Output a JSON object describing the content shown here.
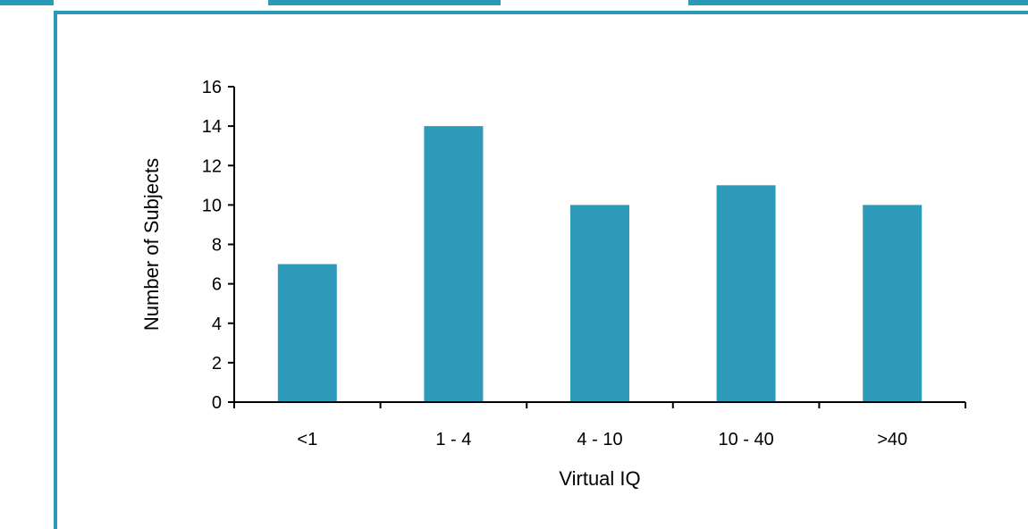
{
  "chart_data": {
    "type": "bar",
    "categories": [
      "<1",
      "1 - 4",
      "4 - 10",
      "10 - 40",
      ">40"
    ],
    "values": [
      7,
      14,
      10,
      11,
      10
    ],
    "xlabel": "Virtual IQ",
    "ylabel": "Number of Subjects",
    "ylim": [
      0,
      16
    ],
    "yticks": [
      0,
      2,
      4,
      6,
      8,
      10,
      12,
      14,
      16
    ],
    "bar_color": "#2e9ab9",
    "grid": false,
    "legend": "none"
  },
  "colors": {
    "frame": "#2b9ab8"
  }
}
